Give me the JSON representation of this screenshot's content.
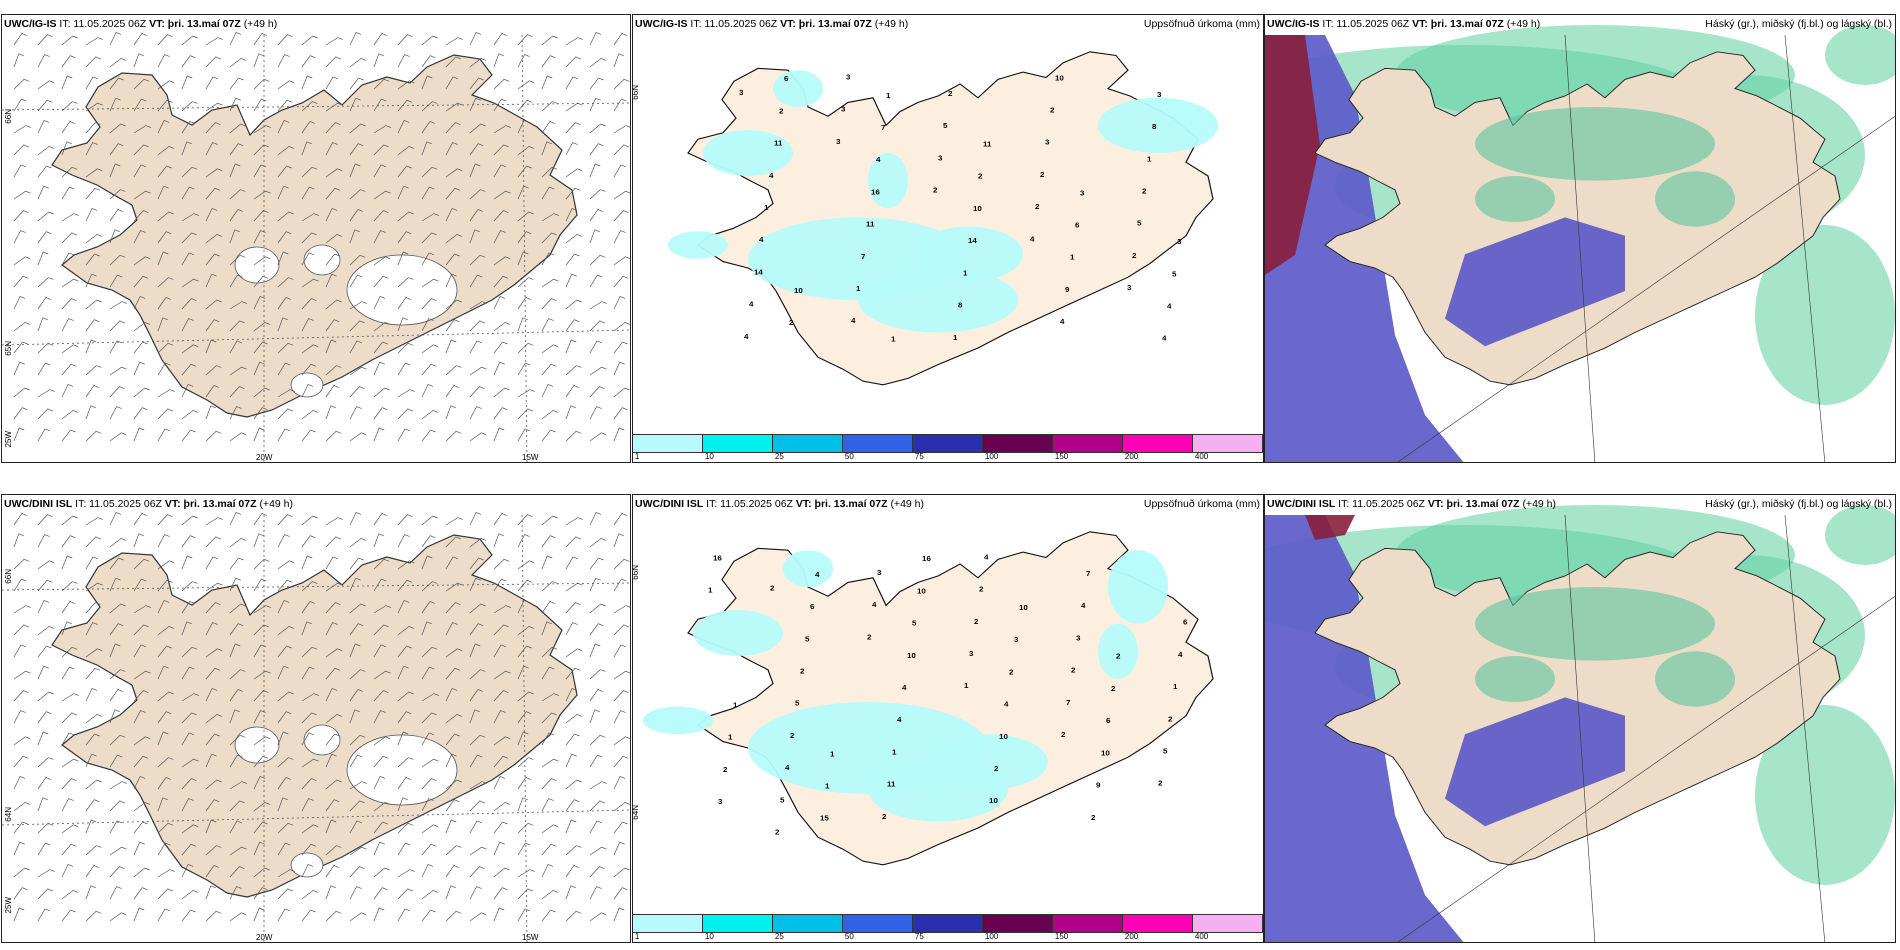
{
  "rows": [
    {
      "model_label": "UWC/IG-IS",
      "it_label": "IT: 11.05.2025 06Z",
      "vt_label": "VT: þri. 13.maí 07Z",
      "lead_label": "(+49 h)"
    },
    {
      "model_label": "UWC/DINI ISL",
      "it_label": "IT: 11.05.2025 06Z",
      "vt_label": "VT: þri. 13.maí 07Z",
      "lead_label": "(+49 h)"
    }
  ],
  "precip_title": "Uppsöfnuð úrkoma (mm)",
  "cloud_title": "Háský (gr.), miðský (fj.bl.) og lágský (bl.)",
  "axis_labels": {
    "lat66": "66N",
    "lat64": "64N",
    "lat65": "65N",
    "lon25": "25W",
    "lon20": "20W",
    "lon15": "15W"
  },
  "colorbar": {
    "colors": [
      "#b6fbfb",
      "#00f0f0",
      "#00bfe8",
      "#2f64e6",
      "#2a2fb0",
      "#6a0050",
      "#b0008a",
      "#ff00b4",
      "#f5b0f0"
    ],
    "ticks": [
      "1",
      "10",
      "25",
      "50",
      "75",
      "100",
      "150",
      "200",
      "400"
    ]
  },
  "land_color": "#ecdcc8",
  "precip_land_color": "#fdefe0",
  "precip_numbers_top": [
    "3",
    "3",
    "2",
    "4",
    "3",
    "4",
    "3",
    "3",
    "2",
    "2",
    "4",
    "3",
    "5",
    "2",
    "5",
    "14",
    "4",
    "2",
    "3",
    "2",
    "4",
    "1",
    "1",
    "2",
    "1",
    "1",
    "7",
    "8",
    "10",
    "8",
    "4",
    "11",
    "1",
    "4",
    "3",
    "11",
    "16",
    "14",
    "9",
    "4",
    "2",
    "4",
    "10",
    "1",
    "4",
    "6",
    "7",
    "2",
    "6",
    "5",
    "2",
    "1",
    "11",
    "3",
    "3",
    "10",
    "1"
  ],
  "precip_numbers_bottom": [
    "2",
    "2",
    "1",
    "2",
    "2",
    "2",
    "4",
    "3",
    "7",
    "5",
    "5",
    "3",
    "2",
    "2",
    "2",
    "4",
    "2",
    "2",
    "3",
    "1",
    "2",
    "11",
    "4",
    "4",
    "4",
    "5",
    "1",
    "10",
    "7",
    "6",
    "2",
    "4",
    "2",
    "2",
    "1",
    "5",
    "4",
    "10",
    "9",
    "16",
    "6",
    "10",
    "4",
    "10",
    "3",
    "4",
    "5",
    "2",
    "6",
    "2",
    "15",
    "10",
    "3",
    "2",
    "1",
    "1",
    "16",
    "10",
    "2",
    "1",
    "1"
  ]
}
